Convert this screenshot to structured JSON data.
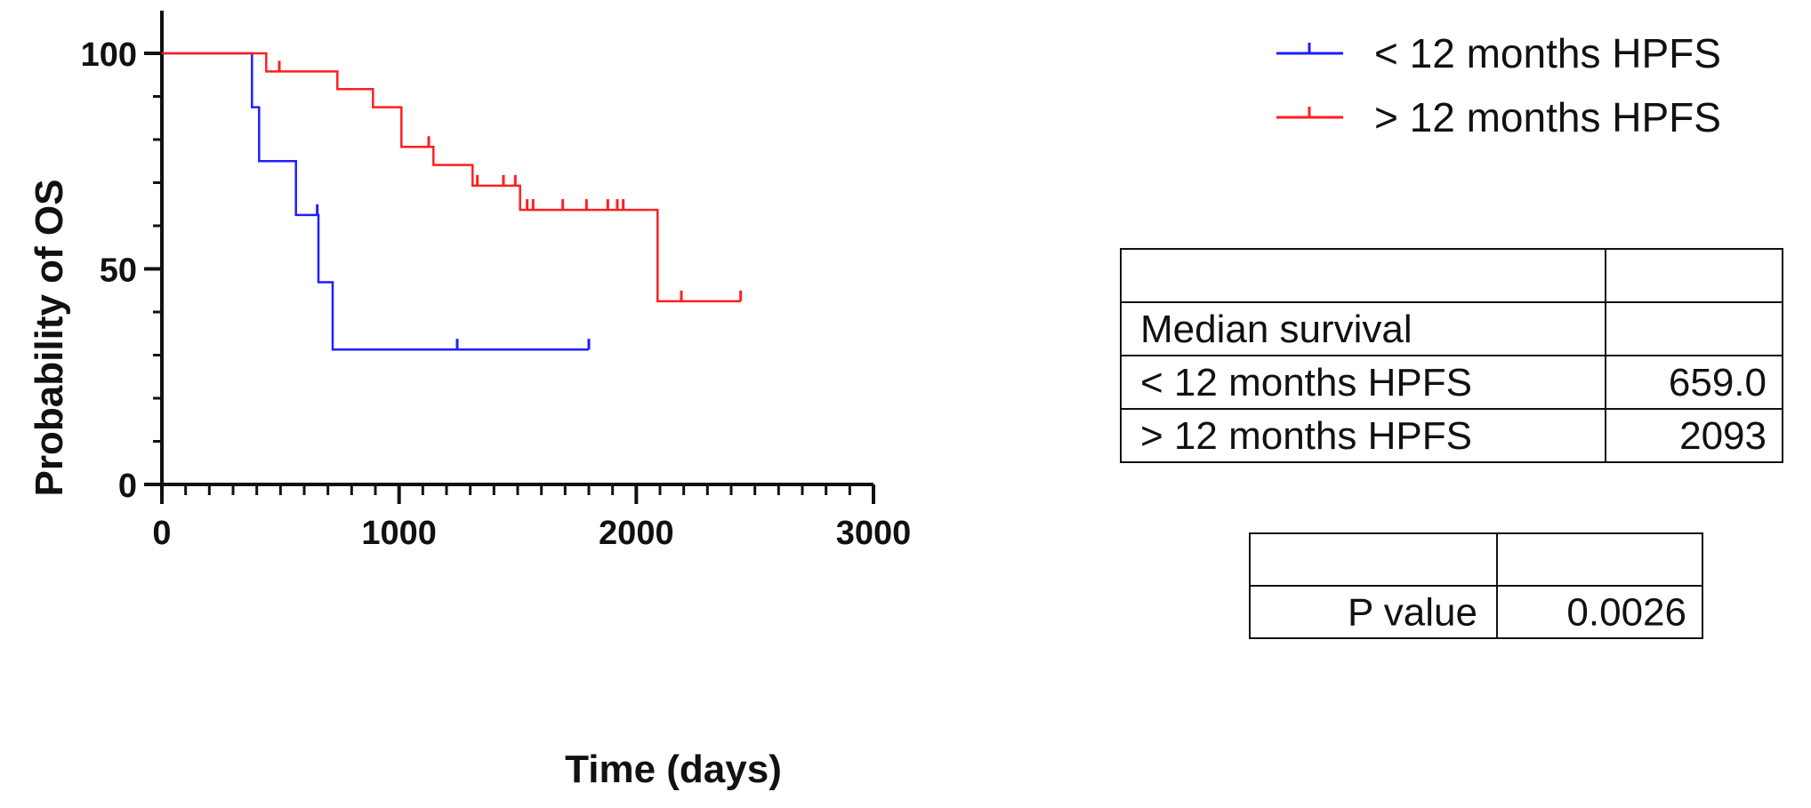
{
  "chart_data": {
    "type": "line",
    "subtype": "kaplan-meier step",
    "xlabel": "Time (days)",
    "ylabel": "Probability of OS",
    "xlim": [
      0,
      3000
    ],
    "ylim": [
      0,
      100
    ],
    "xticks": [
      {
        "value": 0,
        "label": "0"
      },
      {
        "value": 1000,
        "label": "1000"
      },
      {
        "value": 2000,
        "label": "2000"
      },
      {
        "value": 3000,
        "label": "3000"
      }
    ],
    "yticks": [
      {
        "value": 0,
        "label": "0"
      },
      {
        "value": 50,
        "label": "50"
      },
      {
        "value": 100,
        "label": "100"
      }
    ],
    "x_minor_step": 100,
    "y_minor_step": 10,
    "series": [
      {
        "name": "< 12 months HPFS",
        "color": "#1f1fff",
        "steps": [
          [
            0,
            100
          ],
          [
            380,
            100
          ],
          [
            380,
            87.5
          ],
          [
            410,
            87.5
          ],
          [
            410,
            75
          ],
          [
            565,
            75
          ],
          [
            565,
            62.5
          ],
          [
            660,
            62.5
          ],
          [
            660,
            46.9
          ],
          [
            720,
            46.9
          ],
          [
            720,
            31.3
          ],
          [
            1800,
            31.3
          ]
        ],
        "censored": [
          [
            655,
            62.5
          ],
          [
            1245,
            31.3
          ],
          [
            1800,
            31.3
          ]
        ]
      },
      {
        "name": "> 12 months HPFS",
        "color": "#ff1f1f",
        "steps": [
          [
            0,
            100
          ],
          [
            440,
            100
          ],
          [
            440,
            95.8
          ],
          [
            740,
            95.8
          ],
          [
            740,
            91.7
          ],
          [
            890,
            91.7
          ],
          [
            890,
            87.5
          ],
          [
            1010,
            87.5
          ],
          [
            1010,
            78.3
          ],
          [
            1145,
            78.3
          ],
          [
            1145,
            74.1
          ],
          [
            1310,
            74.1
          ],
          [
            1310,
            69.3
          ],
          [
            1510,
            69.3
          ],
          [
            1510,
            63.7
          ],
          [
            2090,
            63.7
          ],
          [
            2090,
            42.5
          ],
          [
            2440,
            42.5
          ]
        ],
        "censored": [
          [
            495,
            95.8
          ],
          [
            1125,
            78.3
          ],
          [
            1330,
            69.3
          ],
          [
            1440,
            69.3
          ],
          [
            1490,
            69.3
          ],
          [
            1540,
            63.7
          ],
          [
            1565,
            63.7
          ],
          [
            1690,
            63.7
          ],
          [
            1790,
            63.7
          ],
          [
            1880,
            63.7
          ],
          [
            1920,
            63.7
          ],
          [
            1945,
            63.7
          ],
          [
            2190,
            42.5
          ],
          [
            2440,
            42.5
          ]
        ]
      }
    ],
    "legend_position": "top-right",
    "annotations": {
      "median_table": {
        "header": [
          "",
          ""
        ],
        "rows": [
          [
            "Median survival",
            ""
          ],
          [
            "< 12 months HPFS",
            "659.0"
          ],
          [
            "> 12 months HPFS",
            "2093"
          ]
        ]
      },
      "p_table": {
        "header": [
          "",
          ""
        ],
        "rows": [
          [
            "P value",
            "0.0026"
          ]
        ]
      }
    }
  }
}
